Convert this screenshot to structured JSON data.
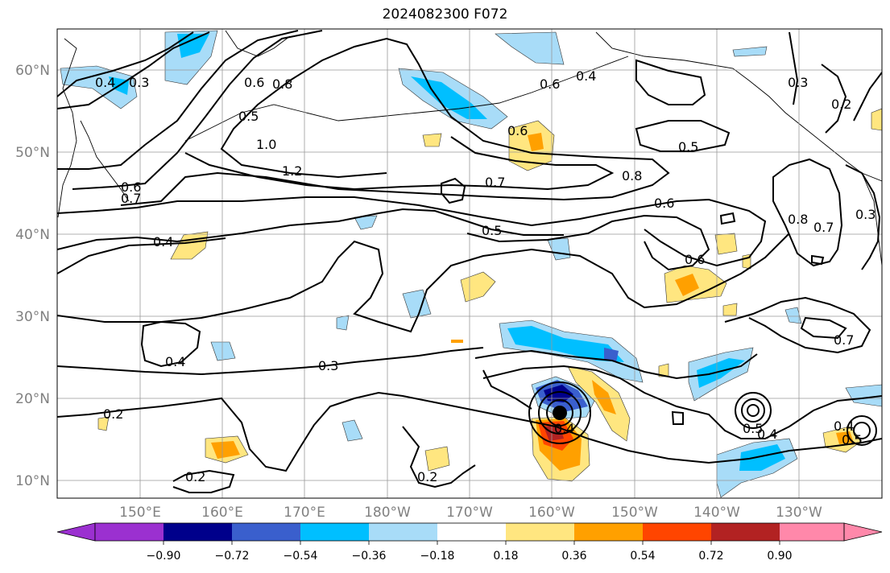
{
  "title": "2024082300 F072",
  "lat_labels": [
    "60°N",
    "50°N",
    "40°N",
    "30°N",
    "20°N",
    "10°N"
  ],
  "lon_labels": [
    "150°E",
    "160°E",
    "170°E",
    "180°W",
    "170°W",
    "160°W",
    "150°W",
    "140°W",
    "130°W"
  ],
  "contour_labels": [
    "0.4",
    "0.3",
    "0.5",
    "0.6",
    "0.8",
    "1.0",
    "1.2",
    "0.6",
    "0.7",
    "0.4",
    "0.4",
    "0.6",
    "0.7",
    "0.8",
    "0.6",
    "0.5",
    "0.6",
    "0.5",
    "0.8",
    "0.7",
    "0.3",
    "0.3",
    "0.2",
    "0.6",
    "0.7",
    "0.4",
    "0.3",
    "0.2",
    "0.2",
    "0.2",
    "0.4",
    "0.5",
    "0.4",
    "0.4",
    "0.5"
  ],
  "colorbar": {
    "ticks": [
      "−0.90",
      "−0.72",
      "−0.54",
      "−0.36",
      "−0.18",
      "0.18",
      "0.36",
      "0.54",
      "0.72",
      "0.90"
    ],
    "colors": [
      "#9b30d0",
      "#00008b",
      "#3a5fcd",
      "#00bfff",
      "#a8dcf8",
      "#ffffff",
      "#ffe680",
      "#ffa000",
      "#ff4500",
      "#b22222",
      "#ff88aa"
    ]
  }
}
